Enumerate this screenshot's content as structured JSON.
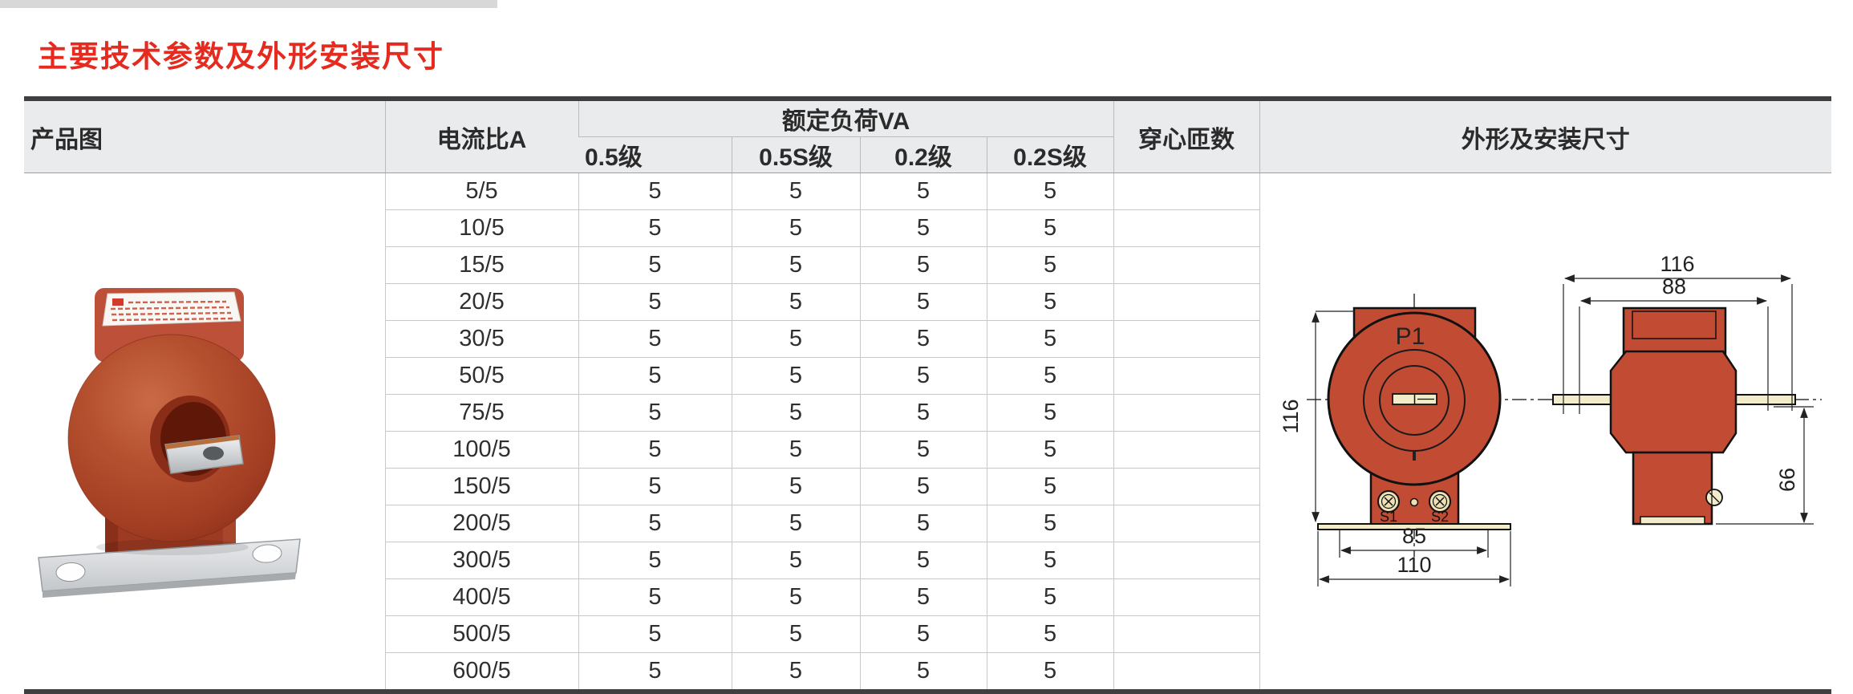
{
  "title": "主要技术参数及外形安装尺寸",
  "colors": {
    "title_red": "#e52a1f",
    "header_bg": "#e9ebed",
    "table_border_dark": "#3f3f41",
    "grid_line": "#c6c9cb",
    "drawing_red": "#c14b33",
    "photo_body_red": "#b04a30",
    "busbar_cream": "#f2ecca"
  },
  "table": {
    "headers": {
      "product_image": "产品图",
      "current_ratio": "电流比A",
      "rated_load": "额定负荷VA",
      "load_classes": [
        "0.5级",
        "0.5S级",
        "0.2级",
        "0.2S级"
      ],
      "turns": "穿心匝数",
      "dimensions": "外形及安装尺寸"
    },
    "rows": [
      {
        "ratio": "5/5",
        "loads": [
          "5",
          "5",
          "5",
          "5"
        ],
        "turns": ""
      },
      {
        "ratio": "10/5",
        "loads": [
          "5",
          "5",
          "5",
          "5"
        ],
        "turns": ""
      },
      {
        "ratio": "15/5",
        "loads": [
          "5",
          "5",
          "5",
          "5"
        ],
        "turns": ""
      },
      {
        "ratio": "20/5",
        "loads": [
          "5",
          "5",
          "5",
          "5"
        ],
        "turns": ""
      },
      {
        "ratio": "30/5",
        "loads": [
          "5",
          "5",
          "5",
          "5"
        ],
        "turns": ""
      },
      {
        "ratio": "50/5",
        "loads": [
          "5",
          "5",
          "5",
          "5"
        ],
        "turns": ""
      },
      {
        "ratio": "75/5",
        "loads": [
          "5",
          "5",
          "5",
          "5"
        ],
        "turns": ""
      },
      {
        "ratio": "100/5",
        "loads": [
          "5",
          "5",
          "5",
          "5"
        ],
        "turns": ""
      },
      {
        "ratio": "150/5",
        "loads": [
          "5",
          "5",
          "5",
          "5"
        ],
        "turns": ""
      },
      {
        "ratio": "200/5",
        "loads": [
          "5",
          "5",
          "5",
          "5"
        ],
        "turns": ""
      },
      {
        "ratio": "300/5",
        "loads": [
          "5",
          "5",
          "5",
          "5"
        ],
        "turns": ""
      },
      {
        "ratio": "400/5",
        "loads": [
          "5",
          "5",
          "5",
          "5"
        ],
        "turns": ""
      },
      {
        "ratio": "500/5",
        "loads": [
          "5",
          "5",
          "5",
          "5"
        ],
        "turns": ""
      },
      {
        "ratio": "600/5",
        "loads": [
          "5",
          "5",
          "5",
          "5"
        ],
        "turns": ""
      }
    ]
  },
  "drawing": {
    "front_view": {
      "label_p1": "P1",
      "label_s1": "S1",
      "label_s2": "S2",
      "dim_height": "116",
      "dim_hole_spacing": "85",
      "dim_base_width": "110"
    },
    "side_view": {
      "dim_total_width": "116",
      "dim_inner_width": "88",
      "dim_lower_height": "66"
    }
  }
}
